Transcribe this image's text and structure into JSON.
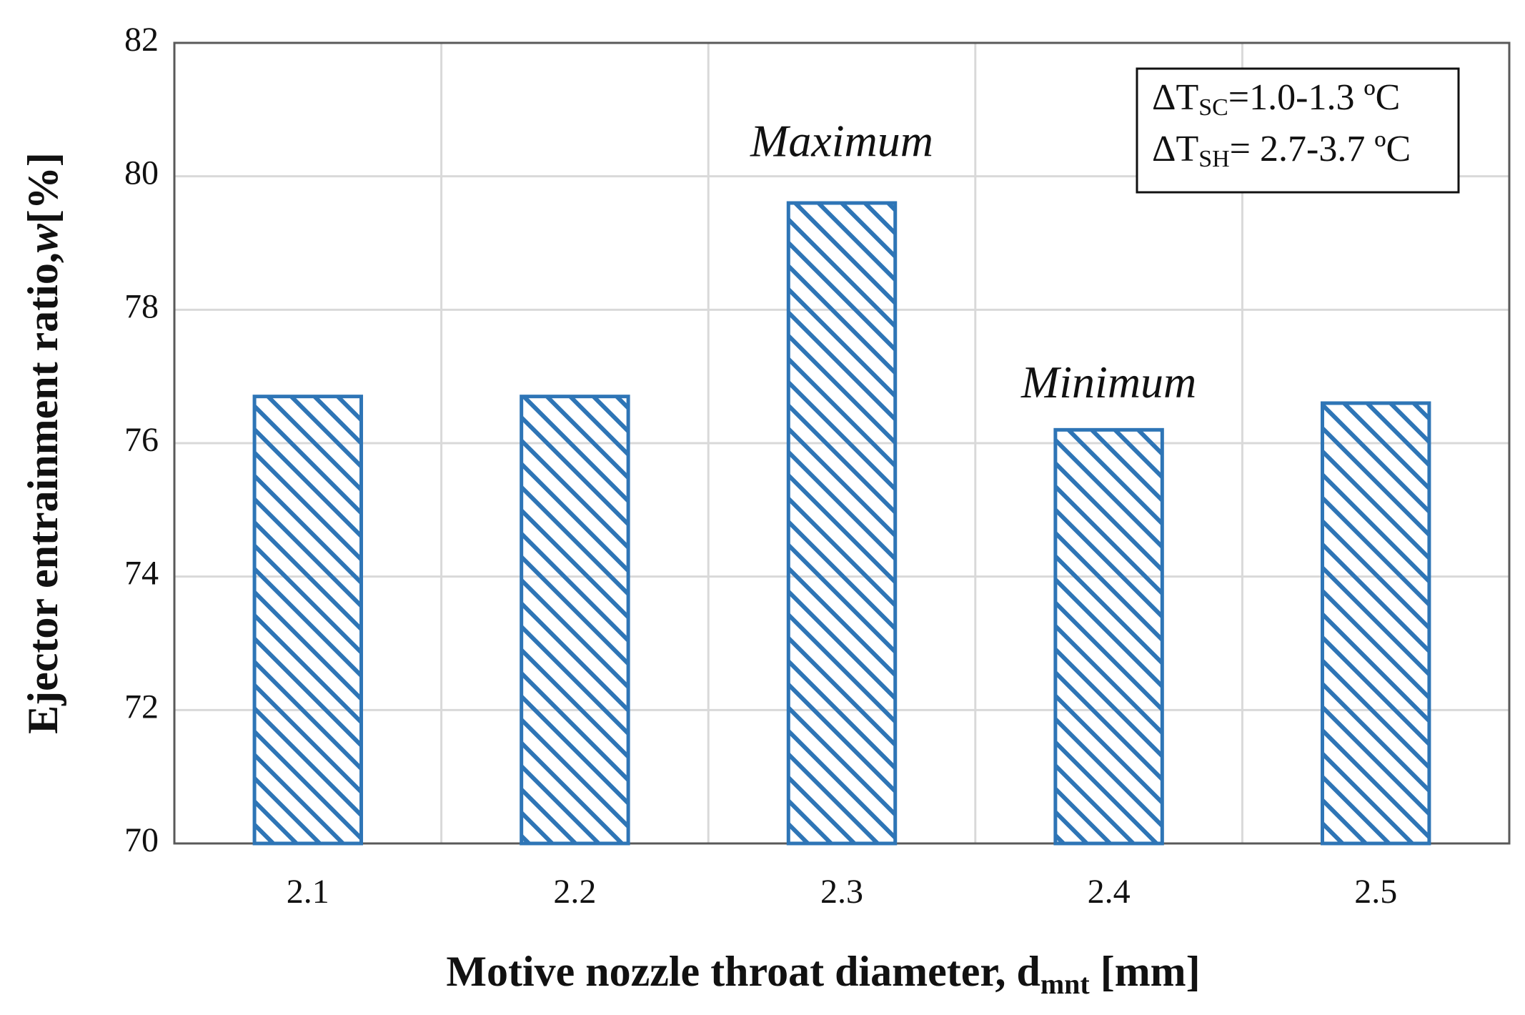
{
  "chart_data": {
    "type": "bar",
    "x_label": {
      "text": "Motive nozzle throat diameter, d",
      "sub": "mnt",
      "tail": " [mm]"
    },
    "y_label": {
      "text": "Ejector entrainment ratio,",
      "italic": "w",
      "tail": "[%]"
    },
    "categories": [
      "2.1",
      "2.2",
      "2.3",
      "2.4",
      "2.5"
    ],
    "values": [
      76.7,
      76.7,
      79.6,
      76.2,
      76.6
    ],
    "color": "#2e75b6",
    "ylim": [
      70,
      82
    ],
    "yticks": [
      70,
      72,
      74,
      76,
      78,
      80,
      82
    ],
    "grid": true,
    "annotations": {
      "max": "Maximum",
      "min": "Minimum"
    },
    "info_box": [
      {
        "text": "ΔT",
        "sub": "SC",
        "tail": "=1.0-1.3 ºC"
      },
      {
        "text": "ΔT",
        "sub": "SH",
        "tail": "= 2.7-3.7 ºC"
      }
    ]
  }
}
